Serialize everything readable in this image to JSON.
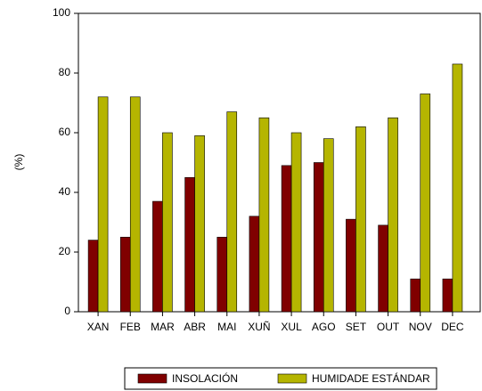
{
  "chart_data": {
    "type": "bar",
    "ylabel": "(%)",
    "categories": [
      "XAN",
      "FEB",
      "MAR",
      "ABR",
      "MAI",
      "XUÑ",
      "XUL",
      "AGO",
      "SET",
      "OUT",
      "NOV",
      "DEC"
    ],
    "series": [
      {
        "name": "INSOLACIÓN",
        "color": "#800000",
        "values": [
          24,
          25,
          37,
          45,
          25,
          32,
          49,
          50,
          31,
          29,
          11,
          11
        ]
      },
      {
        "name": "HUMIDADE ESTÁNDAR",
        "color": "#b5b500",
        "values": [
          72,
          72,
          60,
          59,
          67,
          65,
          60,
          58,
          62,
          65,
          73,
          83
        ]
      }
    ],
    "ylim": [
      0,
      100
    ],
    "yticks": [
      0,
      20,
      40,
      60,
      80,
      100
    ],
    "grid": false,
    "legend": "bottom"
  }
}
